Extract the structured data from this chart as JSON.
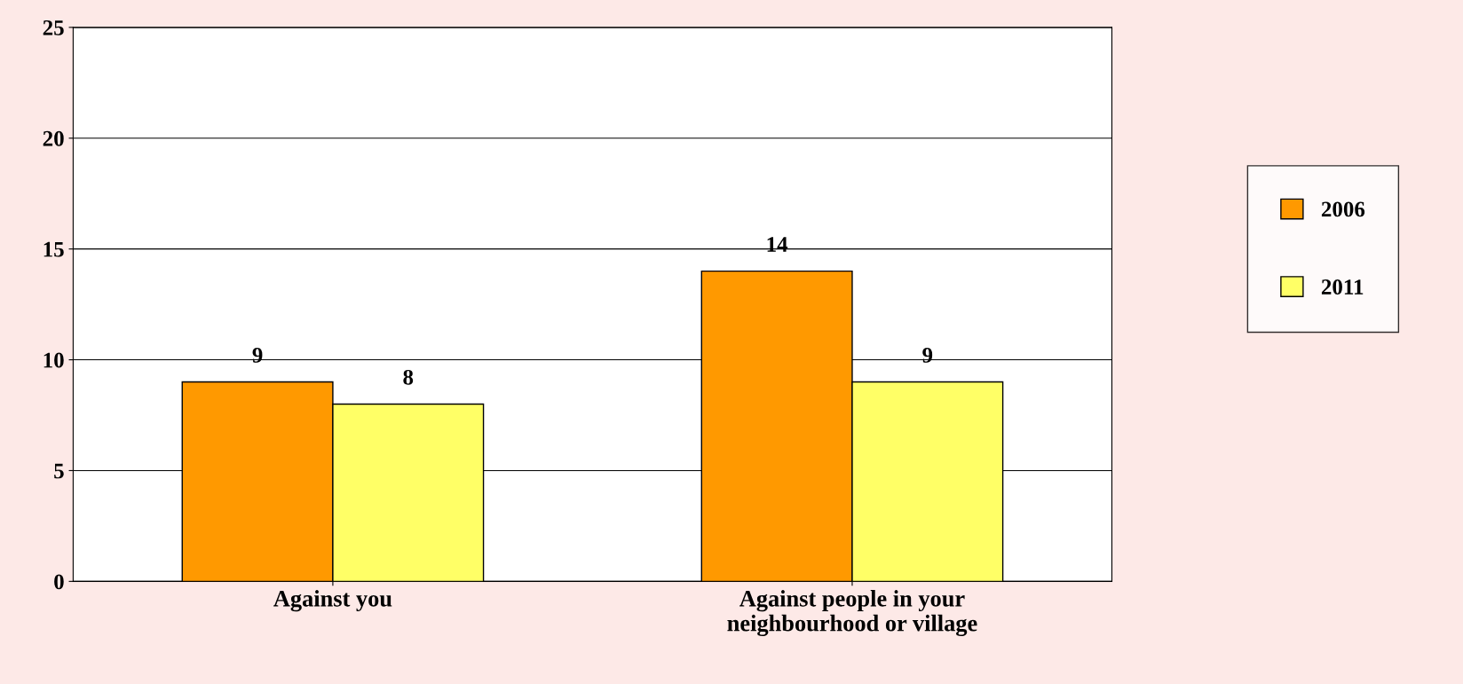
{
  "chart_data": {
    "type": "bar",
    "categories": [
      "Against you",
      "Against people in your\nneighbourhood or village"
    ],
    "series": [
      {
        "name": "2006",
        "color": "#ff9900",
        "values": [
          9,
          14
        ]
      },
      {
        "name": "2011",
        "color": "#ffff66",
        "values": [
          8,
          9
        ]
      }
    ],
    "ylim": [
      0,
      25
    ],
    "yticks": [
      0,
      5,
      10,
      15,
      20,
      25
    ],
    "grid": "y",
    "legend": "right",
    "data_labels": true
  }
}
